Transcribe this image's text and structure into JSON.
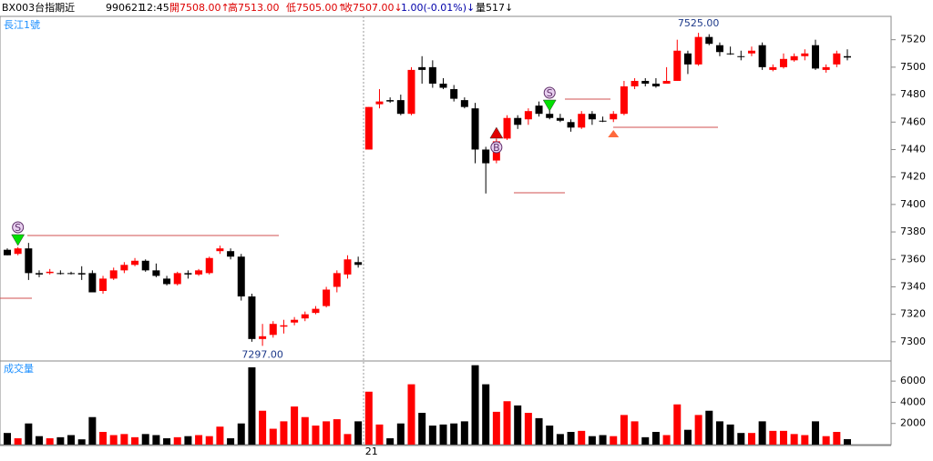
{
  "header": {
    "symbol": "BX003台指期近",
    "date": "990621",
    "time": "12:45",
    "open": "開7508.00↑",
    "high": "高7513.00",
    "low": "低7505.00↑",
    "close": "收7507.00↓",
    "change": "1.00(-0.01%)↓",
    "volume": "量517↓"
  },
  "chart_data": {
    "type": "candlestick",
    "title": "長江1號",
    "volume_title": "成交量",
    "up_color": "#ff0000",
    "down_color": "#000000",
    "categories": [
      null,
      null,
      null,
      null,
      null,
      null,
      null,
      null,
      null,
      null,
      null,
      null,
      null,
      null,
      null,
      null,
      null,
      null,
      null,
      null,
      null,
      null,
      null,
      null,
      null,
      null,
      null,
      null,
      null,
      null,
      null,
      null,
      null,
      null,
      "21",
      null,
      null,
      null,
      null,
      null,
      null,
      null,
      null,
      null,
      null,
      null,
      null,
      null,
      null,
      null,
      null,
      null,
      null,
      null,
      null,
      null,
      null,
      null,
      null,
      null,
      null,
      null,
      null,
      null,
      null,
      null,
      null,
      null,
      null,
      null,
      null,
      null,
      null,
      null,
      null,
      null,
      null,
      null,
      null,
      null
    ],
    "open": [
      7367,
      7364,
      7368,
      7350,
      7350,
      7350,
      7350,
      7350,
      7350,
      7337,
      7346,
      7352,
      7356,
      7359,
      7352,
      7346,
      7342,
      7350,
      7349,
      7350,
      7366,
      7366,
      7362,
      7333,
      7302,
      7305,
      7311,
      7314,
      7317,
      7321,
      7326,
      7340,
      7349,
      7358,
      7440,
      7473,
      7476,
      7476,
      7466,
      7500,
      7500,
      7488,
      7484,
      7476,
      7470,
      7440,
      7432,
      7448,
      7463,
      7462,
      7472,
      7466,
      7463,
      7460,
      7456,
      7466,
      7461,
      7462,
      7466,
      7486,
      7490,
      7488,
      7488,
      7490,
      7510,
      7502,
      7522,
      7516,
      7510,
      7508,
      7510,
      7516,
      7498,
      7500,
      7505,
      7508,
      7516,
      7498,
      7502,
      7508
    ],
    "high": [
      7368,
      7369,
      7372,
      7352,
      7353,
      7352,
      7351,
      7355,
      7352,
      7348,
      7354,
      7358,
      7361,
      7360,
      7357,
      7348,
      7351,
      7352,
      7353,
      7362,
      7370,
      7368,
      7364,
      7335,
      7313,
      7315,
      7316,
      7318,
      7322,
      7326,
      7340,
      7352,
      7363,
      7362,
      7471,
      7484,
      7478,
      7480,
      7500,
      7508,
      7505,
      7492,
      7487,
      7478,
      7474,
      7442,
      7448,
      7465,
      7465,
      7470,
      7475,
      7472,
      7466,
      7462,
      7468,
      7468,
      7464,
      7468,
      7490,
      7492,
      7492,
      7492,
      7500,
      7520,
      7512,
      7525,
      7524,
      7518,
      7515,
      7512,
      7515,
      7518,
      7502,
      7510,
      7510,
      7513,
      7520,
      7502,
      7512,
      7513
    ],
    "low": [
      7363,
      7363,
      7345,
      7347,
      7349,
      7349,
      7349,
      7345,
      7336,
      7335,
      7345,
      7350,
      7355,
      7351,
      7347,
      7341,
      7341,
      7346,
      7348,
      7349,
      7364,
      7360,
      7330,
      7300,
      7297,
      7303,
      7306,
      7312,
      7315,
      7320,
      7325,
      7336,
      7346,
      7354,
      7440,
      7470,
      7474,
      7465,
      7465,
      7488,
      7485,
      7484,
      7475,
      7470,
      7430,
      7408,
      7430,
      7447,
      7455,
      7458,
      7464,
      7462,
      7460,
      7453,
      7455,
      7458,
      7460,
      7460,
      7465,
      7484,
      7486,
      7485,
      7488,
      7490,
      7495,
      7501,
      7516,
      7508,
      7509,
      7505,
      7508,
      7498,
      7497,
      7499,
      7504,
      7505,
      7498,
      7496,
      7500,
      7505
    ],
    "close": [
      7363,
      7368,
      7350,
      7349,
      7351,
      7350,
      7350,
      7349,
      7336,
      7346,
      7352,
      7356,
      7359,
      7352,
      7348,
      7342,
      7350,
      7349,
      7352,
      7361,
      7368,
      7362,
      7333,
      7302,
      7304,
      7313,
      7312,
      7316,
      7320,
      7324,
      7338,
      7350,
      7360,
      7356,
      7471,
      7475,
      7475,
      7466,
      7498,
      7498,
      7488,
      7485,
      7477,
      7471,
      7440,
      7430,
      7446,
      7463,
      7458,
      7468,
      7466,
      7463,
      7461,
      7456,
      7466,
      7462,
      7461,
      7466,
      7486,
      7490,
      7488,
      7486,
      7490,
      7512,
      7502,
      7522,
      7517,
      7511,
      7510,
      7508,
      7512,
      7500,
      7500,
      7506,
      7508,
      7510,
      7499,
      7500,
      7510,
      7507
    ],
    "volume": [
      1100,
      600,
      2000,
      800,
      600,
      700,
      900,
      500,
      2600,
      1200,
      900,
      1000,
      700,
      1000,
      900,
      600,
      700,
      800,
      900,
      800,
      1700,
      600,
      2000,
      7300,
      3200,
      1500,
      2200,
      3600,
      2600,
      1800,
      2200,
      2400,
      1000,
      2200,
      5000,
      1900,
      600,
      2000,
      5700,
      3000,
      1800,
      1900,
      2000,
      2200,
      7500,
      5700,
      3100,
      4100,
      3700,
      3000,
      2500,
      1800,
      1000,
      1200,
      1300,
      800,
      900,
      800,
      2800,
      2200,
      700,
      1200,
      900,
      3800,
      1400,
      2800,
      3200,
      2200,
      1900,
      1100,
      1100,
      2200,
      1300,
      1300,
      1000,
      900,
      2200,
      800,
      1200,
      517
    ],
    "ylim": [
      7286,
      7537
    ],
    "yticks": [
      7300,
      7320,
      7340,
      7360,
      7380,
      7400,
      7420,
      7440,
      7460,
      7480,
      7500,
      7520
    ],
    "volume_ylim": [
      0,
      7900
    ],
    "volume_yticks": [
      2000,
      4000,
      6000
    ],
    "annotations": [
      "7525.00",
      "7297.00"
    ],
    "signal_labels": [
      "S",
      "B",
      "S"
    ]
  }
}
